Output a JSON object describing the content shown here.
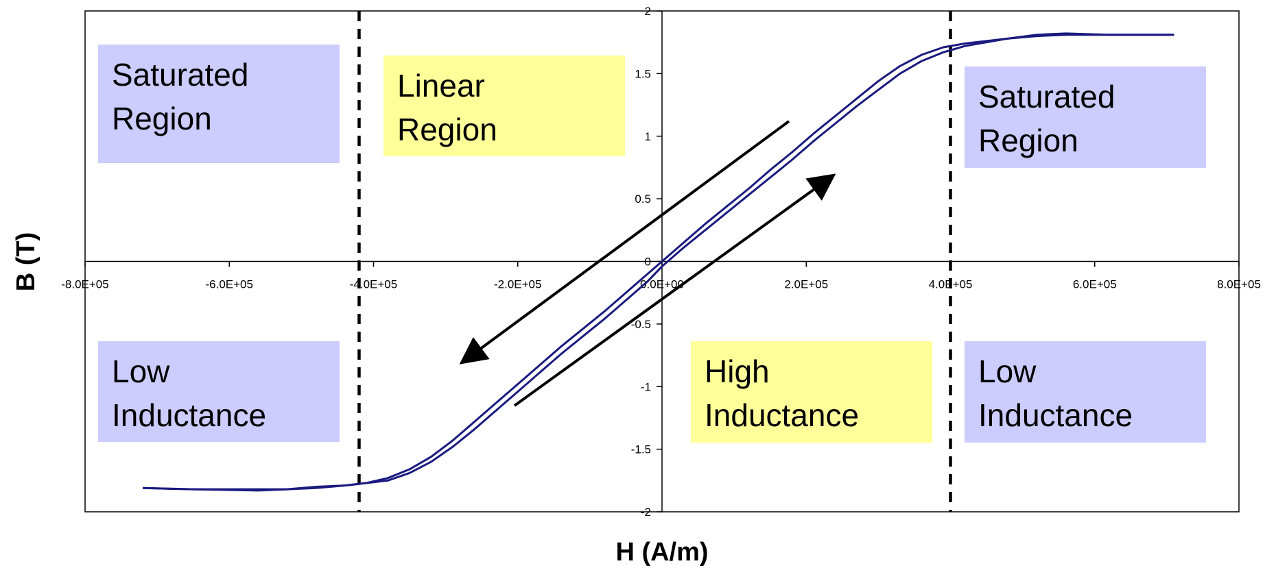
{
  "chart_data": {
    "type": "line",
    "xlabel": "H (A/m)",
    "ylabel": "B (T)",
    "xlim": [
      -800000,
      800000
    ],
    "ylim": [
      -2,
      2
    ],
    "x_ticks": [
      "-8.0E+05",
      "-6.0E+05",
      "-4.0E+05",
      "-2.0E+05",
      "0.0E+00",
      "2.0E+05",
      "4.0E+05",
      "6.0E+05",
      "8.0E+05"
    ],
    "y_ticks": [
      "-2",
      "-1.5",
      "-1",
      "-0.5",
      "0",
      "0.5",
      "1",
      "1.5",
      "2"
    ],
    "grid": false,
    "series_color": "#1a1a80",
    "series": [
      {
        "x": [
          -720000,
          -650000,
          -560000,
          -520000,
          -480000,
          -440000,
          -410000,
          -380000,
          -350000,
          -320000,
          -290000,
          -260000,
          -230000,
          -200000,
          -170000,
          -140000,
          -110000,
          -80000,
          -50000,
          -20000,
          0,
          30000,
          60000,
          90000,
          120000,
          150000,
          180000,
          210000,
          240000,
          270000,
          300000,
          330000,
          360000,
          390000,
          420000,
          450000,
          480000,
          520000,
          560000,
          620000,
          710000
        ],
        "y": [
          -1.81,
          -1.82,
          -1.82,
          -1.82,
          -1.8,
          -1.79,
          -1.77,
          -1.73,
          -1.66,
          -1.56,
          -1.43,
          -1.28,
          -1.13,
          -0.98,
          -0.83,
          -0.68,
          -0.54,
          -0.4,
          -0.25,
          -0.1,
          0.0,
          0.15,
          0.3,
          0.44,
          0.58,
          0.73,
          0.87,
          1.02,
          1.16,
          1.3,
          1.44,
          1.56,
          1.65,
          1.71,
          1.74,
          1.76,
          1.78,
          1.8,
          1.81,
          1.81,
          1.81
        ]
      },
      {
        "x": [
          -720000,
          -650000,
          -560000,
          -520000,
          -480000,
          -440000,
          -410000,
          -380000,
          -350000,
          -320000,
          -290000,
          -260000,
          -230000,
          -200000,
          -170000,
          -140000,
          -110000,
          -80000,
          -50000,
          -20000,
          0,
          30000,
          60000,
          90000,
          120000,
          150000,
          180000,
          210000,
          240000,
          270000,
          300000,
          330000,
          360000,
          390000,
          420000,
          450000,
          480000,
          520000,
          560000,
          620000,
          710000
        ],
        "y": [
          -1.81,
          -1.82,
          -1.83,
          -1.82,
          -1.81,
          -1.79,
          -1.77,
          -1.75,
          -1.69,
          -1.6,
          -1.48,
          -1.34,
          -1.19,
          -1.04,
          -0.89,
          -0.74,
          -0.6,
          -0.46,
          -0.31,
          -0.16,
          -0.04,
          0.11,
          0.25,
          0.39,
          0.53,
          0.67,
          0.81,
          0.96,
          1.1,
          1.24,
          1.37,
          1.5,
          1.6,
          1.67,
          1.72,
          1.75,
          1.78,
          1.81,
          1.82,
          1.81,
          1.81
        ]
      }
    ],
    "region_lines_x": [
      -420000,
      400000
    ],
    "annotations": [
      {
        "id": "sat-left",
        "lines": [
          "Saturated",
          "Region"
        ],
        "fill": "#ccccff"
      },
      {
        "id": "linear",
        "lines": [
          "Linear",
          "Region"
        ],
        "fill": "#ffff99"
      },
      {
        "id": "sat-right",
        "lines": [
          "Saturated",
          "Region"
        ],
        "fill": "#ccccff"
      },
      {
        "id": "low-left",
        "lines": [
          "Low",
          "Inductance"
        ],
        "fill": "#ccccff"
      },
      {
        "id": "high",
        "lines": [
          "High",
          "Inductance"
        ],
        "fill": "#ffff99"
      },
      {
        "id": "low-right",
        "lines": [
          "Low",
          "Inductance"
        ],
        "fill": "#ccccff"
      }
    ]
  }
}
